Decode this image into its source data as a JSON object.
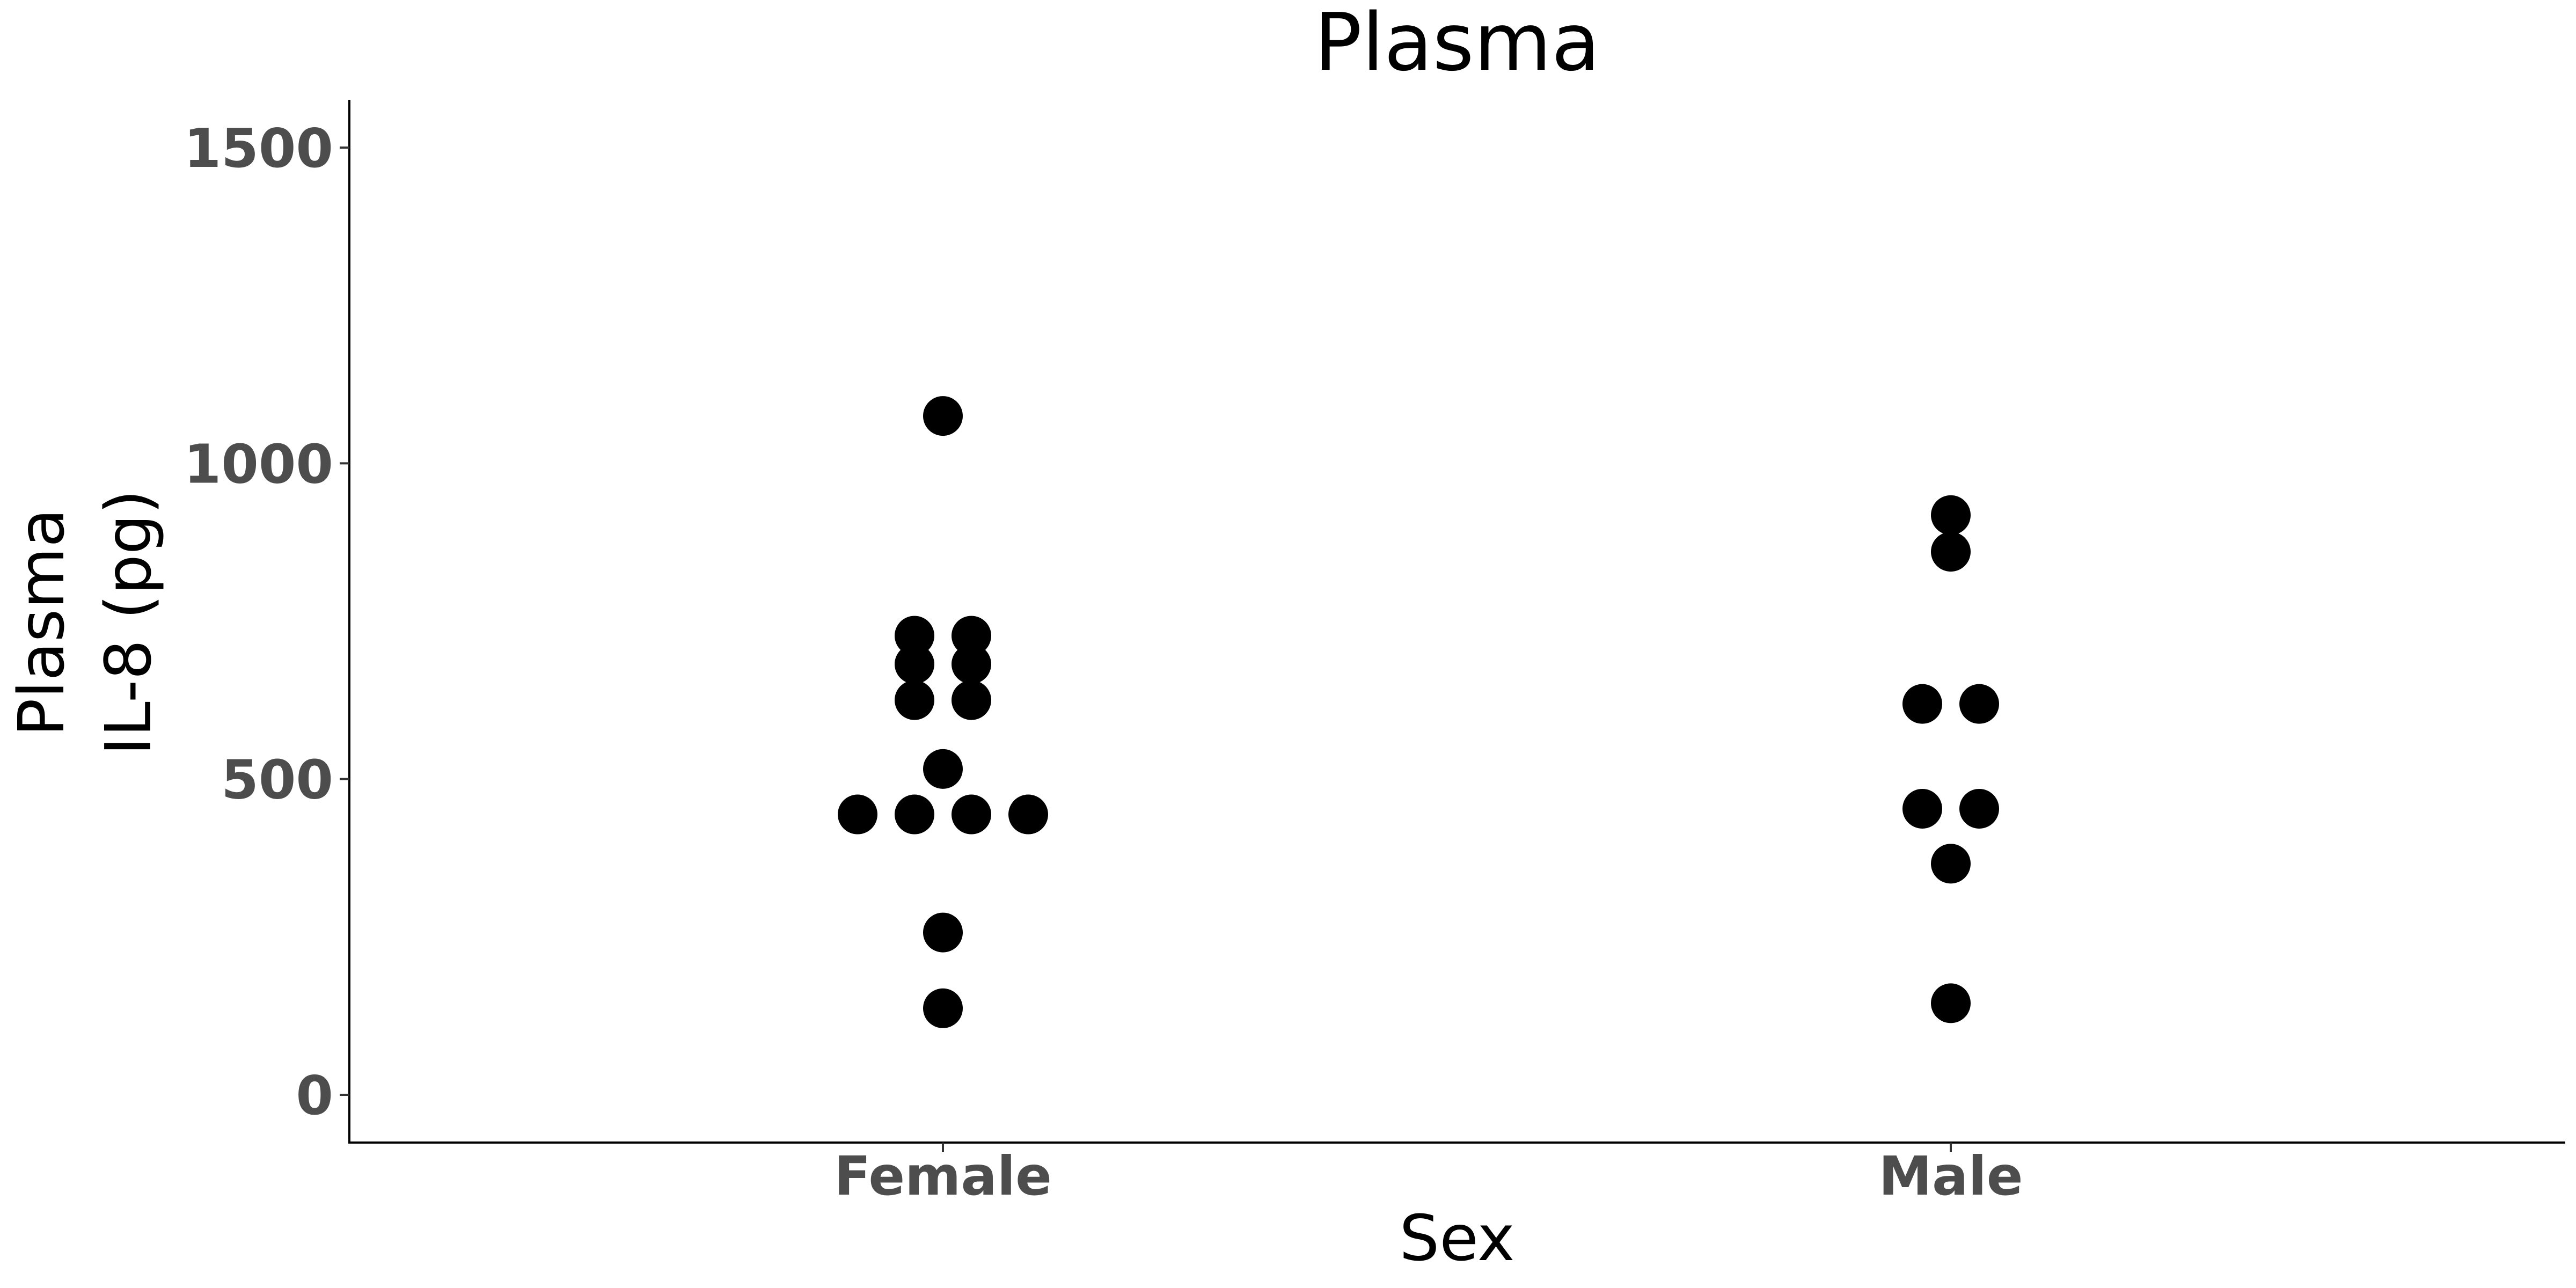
{
  "chart_data": {
    "type": "scatter",
    "title": "Plasma",
    "xlabel": "Sex",
    "ylabel_lines": [
      "Plasma",
      "IL-8 (pg)"
    ],
    "categories": [
      "Female",
      "Male"
    ],
    "yticks": [
      0,
      500,
      1000,
      1500
    ],
    "ylim": [
      -75,
      1575
    ],
    "grid": false,
    "legend": "none",
    "colors": {
      "points": "#000000",
      "tick_labels": "#4d4d4d",
      "axis": "#000000"
    },
    "series": [
      {
        "category": "Female",
        "values": [
          1075,
          727,
          727,
          682,
          682,
          625,
          625,
          516,
          444,
          444,
          444,
          444,
          257,
          137
        ]
      },
      {
        "category": "Male",
        "values": [
          918,
          860,
          619,
          619,
          453,
          453,
          366,
          145
        ]
      }
    ]
  }
}
